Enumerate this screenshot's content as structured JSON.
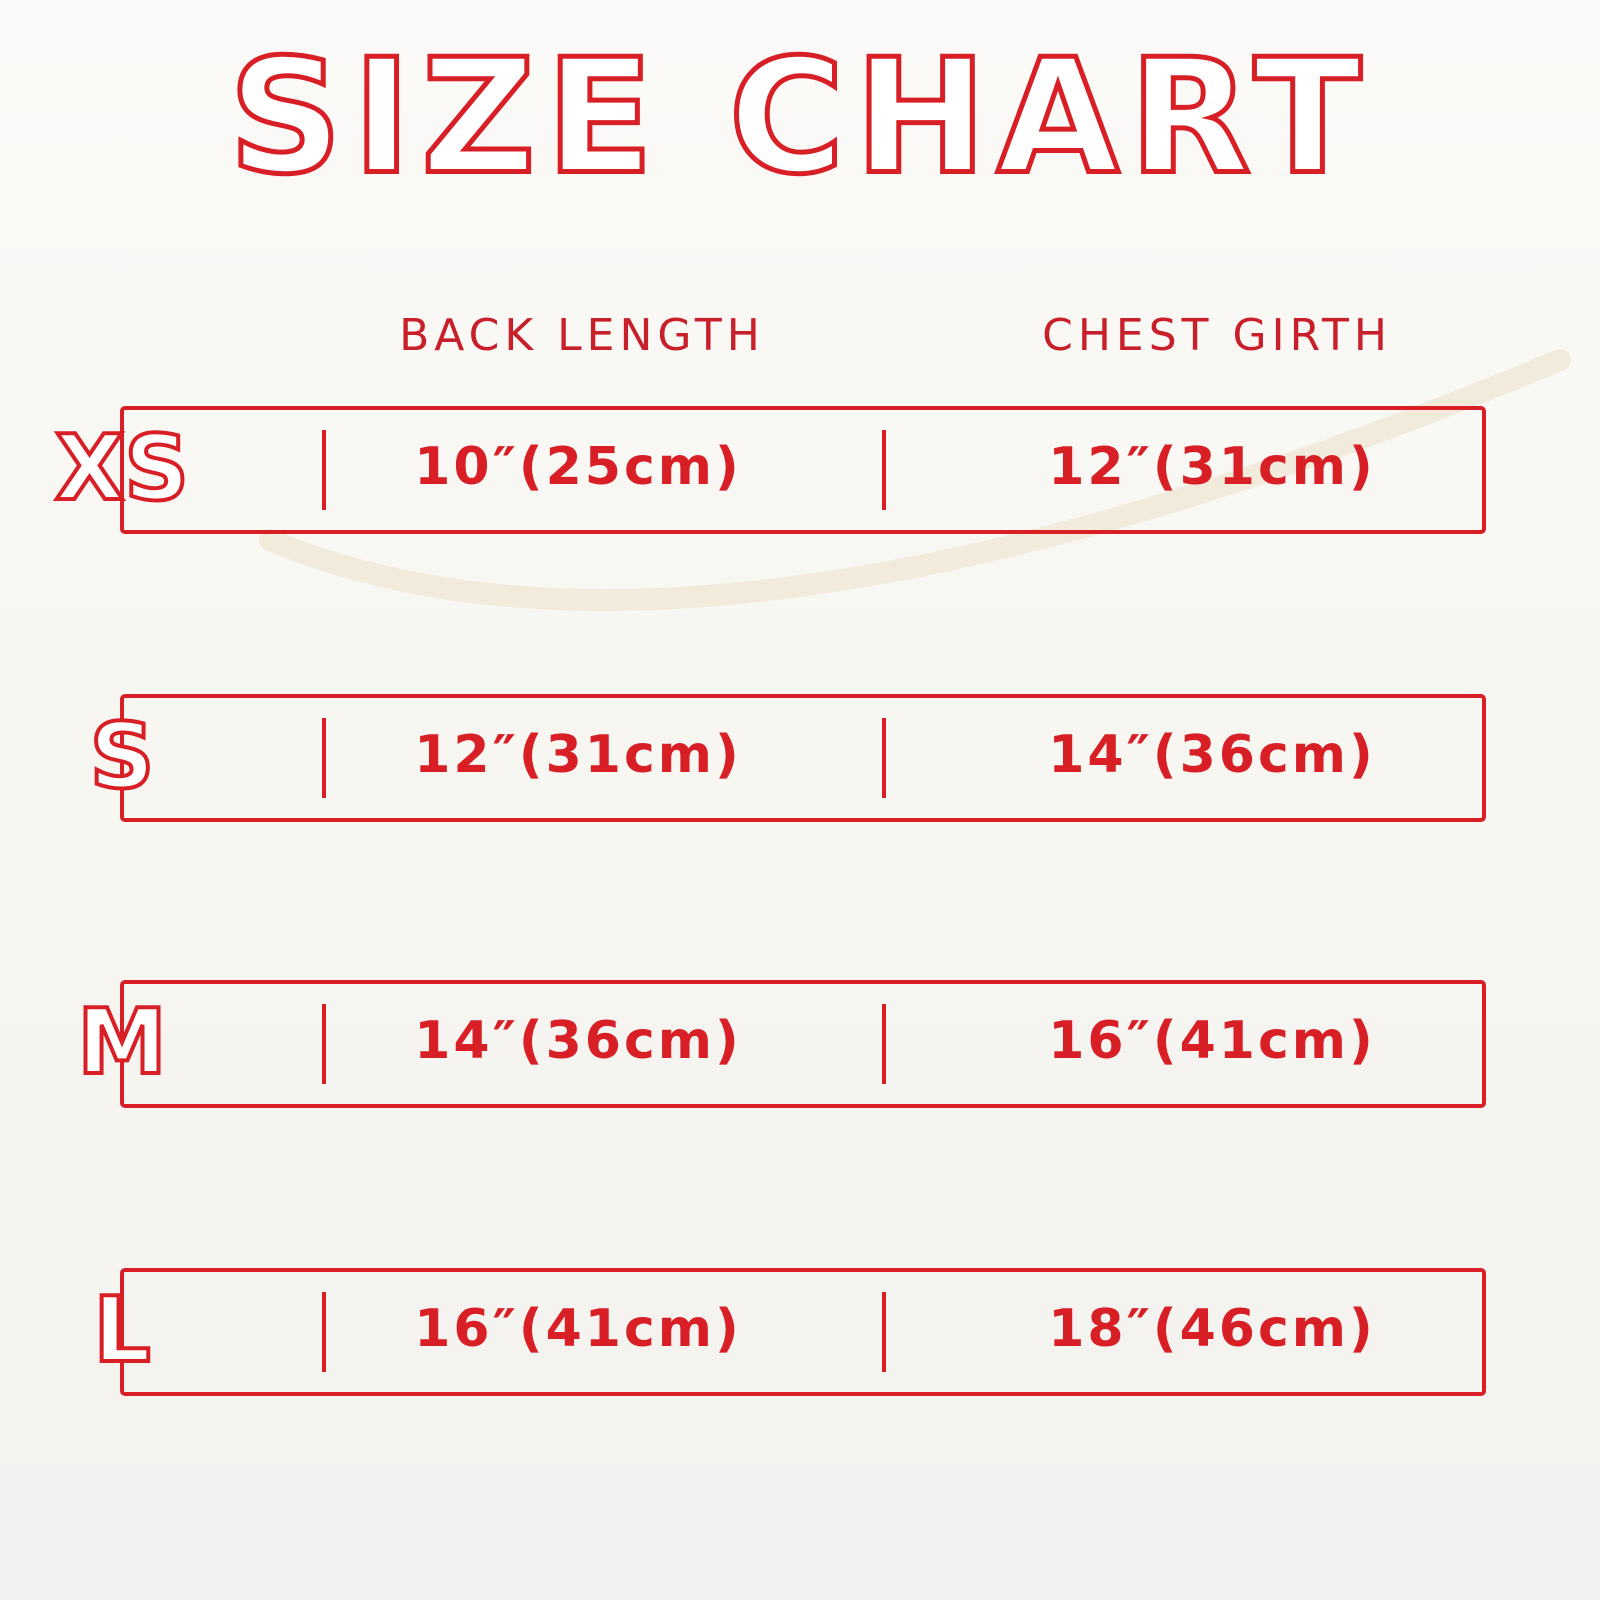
{
  "title": "SIZE CHART",
  "table": {
    "headers": [
      "BACK LENGTH",
      "CHEST GIRTH"
    ],
    "rows": [
      {
        "size": "XS",
        "back_length": "10″(25cm)",
        "chest_girth": "12″(31cm)"
      },
      {
        "size": "S",
        "back_length": "12″(31cm)",
        "chest_girth": "14″(36cm)"
      },
      {
        "size": "M",
        "back_length": "14″(36cm)",
        "chest_girth": "16″(41cm)"
      },
      {
        "size": "L",
        "back_length": "16″(41cm)",
        "chest_girth": "18″(46cm)"
      }
    ]
  }
}
